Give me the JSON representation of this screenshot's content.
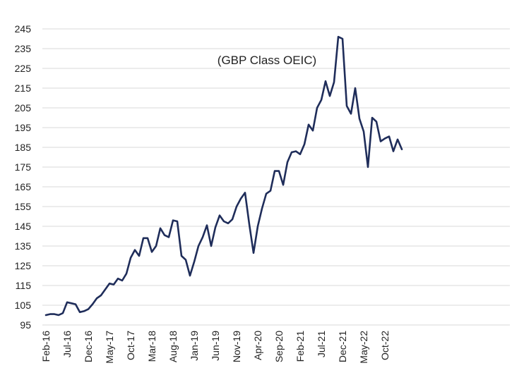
{
  "chart_data": {
    "type": "line",
    "title": "",
    "xlabel": "",
    "ylabel": "",
    "annotation": "(GBP Class OEIC)",
    "grid": "horizontal",
    "legend": "none",
    "ylim": [
      95,
      245
    ],
    "yticks": [
      95,
      105,
      115,
      125,
      135,
      145,
      155,
      165,
      175,
      185,
      195,
      205,
      215,
      225,
      235,
      245
    ],
    "xtick_labels": [
      "Feb-16",
      "Jul-16",
      "Dec-16",
      "May-17",
      "Oct-17",
      "Mar-18",
      "Aug-18",
      "Jan-19",
      "Jun-19",
      "Nov-19",
      "Apr-20",
      "Sep-20",
      "Feb-21",
      "Jul-21",
      "Dec-21",
      "May-22",
      "Oct-22"
    ],
    "series_color": "#1f2d5a",
    "series": [
      {
        "name": "",
        "start": "Feb-16",
        "frequency": "monthly",
        "values": [
          100,
          100.5,
          100.5,
          100,
          101,
          106.5,
          106,
          105.5,
          101.5,
          102,
          103,
          105.5,
          108.5,
          110,
          113,
          116,
          115.5,
          118.5,
          117.5,
          121,
          129,
          133,
          130,
          139,
          139,
          132,
          135,
          144,
          140.5,
          139.5,
          148,
          147.5,
          130,
          128,
          120,
          127,
          135,
          139.5,
          145.5,
          135,
          144.5,
          150.5,
          147.5,
          146.5,
          148.5,
          155,
          159,
          162,
          146,
          131.5,
          145,
          154,
          161.5,
          163,
          173,
          173,
          166,
          177.5,
          182.5,
          183,
          181.5,
          186.5,
          196.5,
          193.5,
          205,
          209,
          218.5,
          211,
          218,
          241,
          240,
          206,
          202,
          215,
          199.5,
          193,
          175,
          200,
          198,
          188,
          189.5,
          190.5,
          183,
          189,
          184
        ]
      }
    ]
  }
}
